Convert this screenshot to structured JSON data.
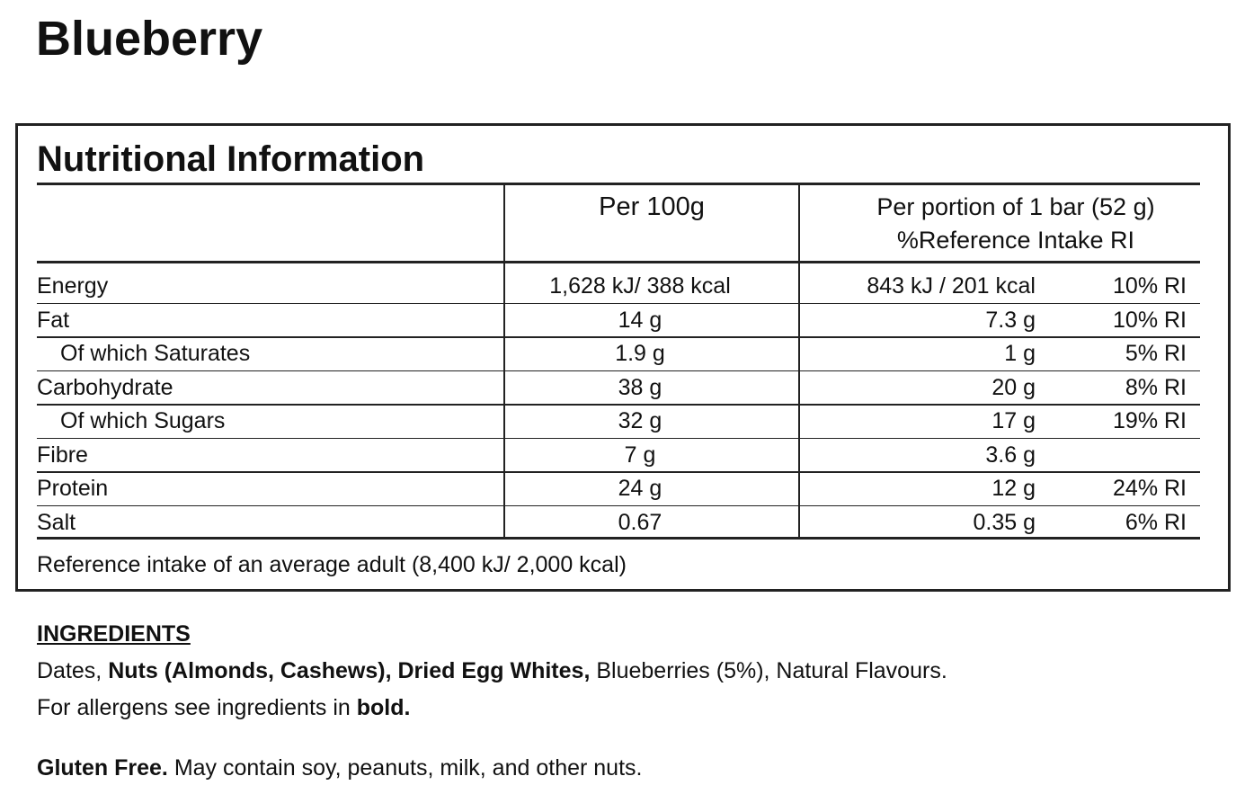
{
  "title": "Blueberry",
  "table": {
    "title": "Nutritional Information",
    "header": {
      "per_100g": "Per 100g",
      "per_portion": "Per portion of 1 bar (52 g)",
      "reference_intake": "%Reference Intake RI"
    },
    "rows": [
      {
        "label": "Energy",
        "per_100g": "1,628 kJ/ 388 kcal",
        "per_portion": "843 kJ / 201 kcal",
        "ri": "10% RI",
        "indent": false
      },
      {
        "label": "Fat",
        "per_100g": "14 g",
        "per_portion": "7.3 g",
        "ri": "10% RI",
        "indent": false
      },
      {
        "label": "Of which Saturates",
        "per_100g": "1.9 g",
        "per_portion": "1 g",
        "ri": "5% RI",
        "indent": true
      },
      {
        "label": "Carbohydrate",
        "per_100g": "38 g",
        "per_portion": "20 g",
        "ri": "8% RI",
        "indent": false
      },
      {
        "label": "Of which Sugars",
        "per_100g": "32 g",
        "per_portion": "17 g",
        "ri": "19% RI",
        "indent": true
      },
      {
        "label": "Fibre",
        "per_100g": "7 g",
        "per_portion": "3.6 g",
        "indent": false
      },
      {
        "label": "Protein",
        "per_100g": "24 g",
        "per_portion": "12 g",
        "ri": "24% RI",
        "indent": false
      },
      {
        "label": "Salt",
        "per_100g": "0.67",
        "per_portion": "0.35 g",
        "ri": "6% RI",
        "indent": false
      }
    ],
    "footnote": "Reference intake of an average adult (8,400 kJ/ 2,000 kcal)"
  },
  "ingredients": {
    "heading": "INGREDIENTS",
    "lines": [
      [
        {
          "text": "Dates,",
          "bold": false
        },
        {
          "text": "Nuts (Almonds, Cashews), Dried Egg Whites,",
          "bold": true
        },
        {
          "text": "Blueberries (5%), Natural Flavours.",
          "bold": false
        }
      ],
      [
        {
          "text": "For allergens see ingredients in",
          "bold": false
        },
        {
          "text": "bold.",
          "bold": true
        }
      ]
    ]
  },
  "notice": [
    {
      "text": "Gluten Free.",
      "bold": true
    },
    {
      "text": "May contain soy, peanuts, milk, and other nuts.",
      "bold": false
    }
  ]
}
